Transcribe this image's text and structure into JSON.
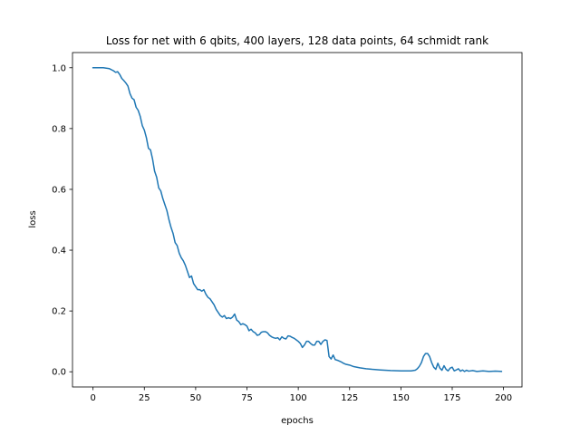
{
  "chart_data": {
    "type": "line",
    "title": "Loss for net with 6 qbits, 400 layers, 128 data points, 64 schmidt rank",
    "xlabel": "epochs",
    "ylabel": "loss",
    "xlim": [
      -10,
      209
    ],
    "ylim": [
      -0.05,
      1.05
    ],
    "xticks": [
      0,
      25,
      50,
      75,
      100,
      125,
      150,
      175,
      200
    ],
    "yticks": [
      0.0,
      0.2,
      0.4,
      0.6,
      0.8,
      1.0
    ],
    "xtick_labels": [
      "0",
      "25",
      "50",
      "75",
      "100",
      "125",
      "150",
      "175",
      "200"
    ],
    "ytick_labels": [
      "0.0",
      "0.2",
      "0.4",
      "0.6",
      "0.8",
      "1.0"
    ],
    "grid": false,
    "line_color": "#1f77b4",
    "series": [
      {
        "points": [
          [
            0,
            1.0
          ],
          [
            3,
            1.0
          ],
          [
            5,
            1.0
          ],
          [
            8,
            0.997
          ],
          [
            10,
            0.99
          ],
          [
            11,
            0.985
          ],
          [
            12,
            0.987
          ],
          [
            13,
            0.978
          ],
          [
            14,
            0.965
          ],
          [
            15,
            0.958
          ],
          [
            16,
            0.95
          ],
          [
            17,
            0.94
          ],
          [
            18,
            0.915
          ],
          [
            19,
            0.9
          ],
          [
            20,
            0.895
          ],
          [
            21,
            0.87
          ],
          [
            22,
            0.86
          ],
          [
            23,
            0.84
          ],
          [
            24,
            0.81
          ],
          [
            25,
            0.795
          ],
          [
            26,
            0.77
          ],
          [
            27,
            0.735
          ],
          [
            28,
            0.73
          ],
          [
            29,
            0.7
          ],
          [
            30,
            0.66
          ],
          [
            31,
            0.64
          ],
          [
            32,
            0.605
          ],
          [
            33,
            0.595
          ],
          [
            34,
            0.57
          ],
          [
            35,
            0.55
          ],
          [
            36,
            0.53
          ],
          [
            37,
            0.5
          ],
          [
            38,
            0.475
          ],
          [
            39,
            0.455
          ],
          [
            40,
            0.425
          ],
          [
            41,
            0.415
          ],
          [
            42,
            0.39
          ],
          [
            43,
            0.375
          ],
          [
            44,
            0.365
          ],
          [
            45,
            0.35
          ],
          [
            46,
            0.33
          ],
          [
            47,
            0.31
          ],
          [
            48,
            0.315
          ],
          [
            49,
            0.29
          ],
          [
            50,
            0.28
          ],
          [
            51,
            0.27
          ],
          [
            52,
            0.27
          ],
          [
            53,
            0.265
          ],
          [
            54,
            0.27
          ],
          [
            55,
            0.255
          ],
          [
            56,
            0.245
          ],
          [
            57,
            0.24
          ],
          [
            58,
            0.23
          ],
          [
            59,
            0.22
          ],
          [
            60,
            0.205
          ],
          [
            61,
            0.195
          ],
          [
            62,
            0.185
          ],
          [
            63,
            0.18
          ],
          [
            64,
            0.185
          ],
          [
            65,
            0.175
          ],
          [
            66,
            0.178
          ],
          [
            67,
            0.175
          ],
          [
            68,
            0.18
          ],
          [
            69,
            0.19
          ],
          [
            70,
            0.17
          ],
          [
            71,
            0.165
          ],
          [
            72,
            0.155
          ],
          [
            73,
            0.158
          ],
          [
            74,
            0.155
          ],
          [
            75,
            0.15
          ],
          [
            76,
            0.135
          ],
          [
            77,
            0.14
          ],
          [
            78,
            0.132
          ],
          [
            79,
            0.128
          ],
          [
            80,
            0.12
          ],
          [
            81,
            0.122
          ],
          [
            82,
            0.13
          ],
          [
            83,
            0.132
          ],
          [
            84,
            0.132
          ],
          [
            85,
            0.128
          ],
          [
            86,
            0.12
          ],
          [
            87,
            0.115
          ],
          [
            88,
            0.112
          ],
          [
            89,
            0.11
          ],
          [
            90,
            0.112
          ],
          [
            91,
            0.105
          ],
          [
            92,
            0.115
          ],
          [
            93,
            0.11
          ],
          [
            94,
            0.108
          ],
          [
            95,
            0.118
          ],
          [
            96,
            0.117
          ],
          [
            97,
            0.113
          ],
          [
            98,
            0.11
          ],
          [
            99,
            0.105
          ],
          [
            100,
            0.1
          ],
          [
            101,
            0.093
          ],
          [
            102,
            0.08
          ],
          [
            103,
            0.088
          ],
          [
            104,
            0.1
          ],
          [
            105,
            0.1
          ],
          [
            106,
            0.093
          ],
          [
            107,
            0.088
          ],
          [
            108,
            0.088
          ],
          [
            109,
            0.1
          ],
          [
            110,
            0.1
          ],
          [
            111,
            0.09
          ],
          [
            112,
            0.1
          ],
          [
            113,
            0.105
          ],
          [
            114,
            0.103
          ],
          [
            115,
            0.05
          ],
          [
            116,
            0.042
          ],
          [
            117,
            0.055
          ],
          [
            118,
            0.04
          ],
          [
            119,
            0.038
          ],
          [
            120,
            0.035
          ],
          [
            121,
            0.032
          ],
          [
            122,
            0.028
          ],
          [
            123,
            0.025
          ],
          [
            125,
            0.022
          ],
          [
            127,
            0.017
          ],
          [
            130,
            0.013
          ],
          [
            133,
            0.01
          ],
          [
            136,
            0.008
          ],
          [
            140,
            0.006
          ],
          [
            145,
            0.004
          ],
          [
            150,
            0.003
          ],
          [
            155,
            0.003
          ],
          [
            157,
            0.005
          ],
          [
            158,
            0.01
          ],
          [
            159,
            0.018
          ],
          [
            160,
            0.03
          ],
          [
            161,
            0.05
          ],
          [
            162,
            0.06
          ],
          [
            163,
            0.06
          ],
          [
            164,
            0.05
          ],
          [
            165,
            0.03
          ],
          [
            166,
            0.015
          ],
          [
            167,
            0.008
          ],
          [
            168,
            0.028
          ],
          [
            169,
            0.012
          ],
          [
            170,
            0.005
          ],
          [
            171,
            0.02
          ],
          [
            172,
            0.008
          ],
          [
            173,
            0.003
          ],
          [
            174,
            0.012
          ],
          [
            175,
            0.015
          ],
          [
            176,
            0.003
          ],
          [
            177,
            0.006
          ],
          [
            178,
            0.01
          ],
          [
            179,
            0.002
          ],
          [
            180,
            0.006
          ],
          [
            181,
            0.001
          ],
          [
            182,
            0.005
          ],
          [
            183,
            0.002
          ],
          [
            185,
            0.004
          ],
          [
            187,
            0.001
          ],
          [
            190,
            0.003
          ],
          [
            193,
            0.001
          ],
          [
            196,
            0.002
          ],
          [
            199,
            0.001
          ]
        ]
      }
    ]
  }
}
